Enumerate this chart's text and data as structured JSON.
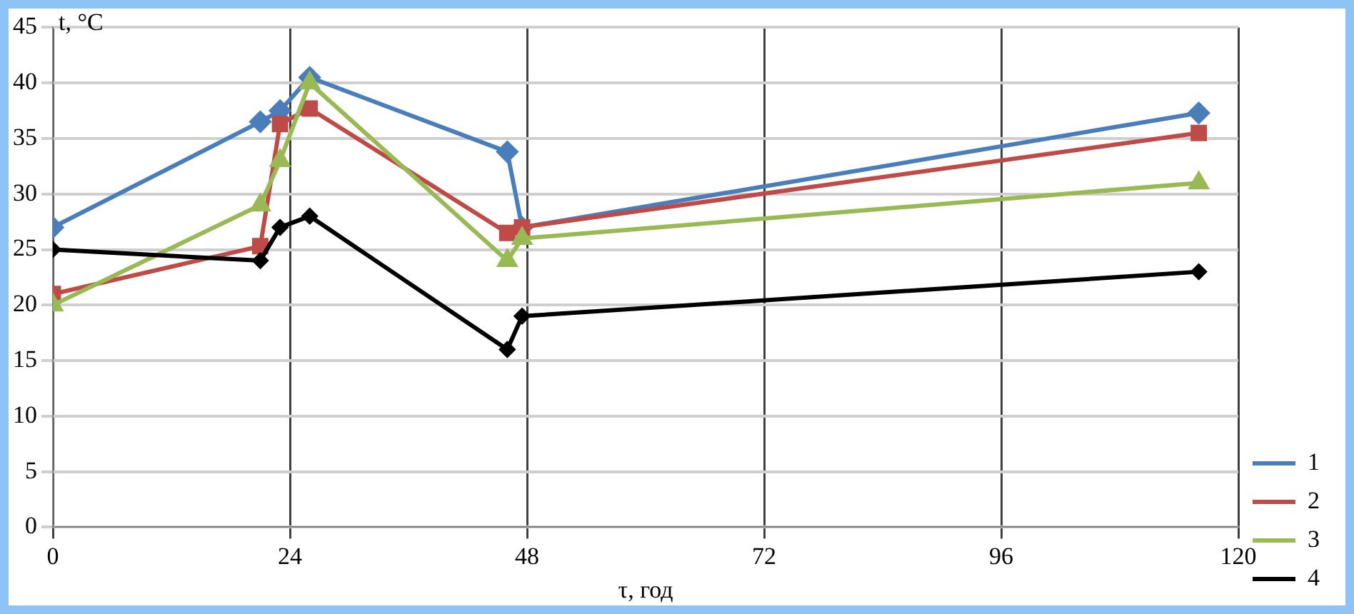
{
  "chart_data": {
    "type": "line",
    "xlabel": "τ, год",
    "ylabel": "t, °C",
    "xlim": [
      0,
      120
    ],
    "xticks": [
      0,
      24,
      48,
      72,
      96,
      120
    ],
    "ylim": [
      0,
      45
    ],
    "yticks": [
      0,
      5,
      10,
      15,
      20,
      25,
      30,
      35,
      40,
      45
    ],
    "grid": true,
    "legend": "right",
    "line_style": "solid",
    "series": [
      {
        "name": "1",
        "color": "#4a7ebb",
        "marker": "diamond",
        "x": [
          0,
          21,
          23,
          26,
          46,
          47.5,
          116
        ],
        "values": [
          27,
          36.5,
          37.5,
          40.5,
          33.8,
          27,
          37.3
        ]
      },
      {
        "name": "2",
        "color": "#be4b48",
        "marker": "square",
        "x": [
          0,
          21,
          23,
          26,
          46,
          47.5,
          116
        ],
        "values": [
          21,
          25.3,
          36.3,
          37.7,
          26.5,
          27,
          35.5
        ]
      },
      {
        "name": "3",
        "color": "#98b954",
        "marker": "triangle",
        "x": [
          0,
          21,
          23,
          26,
          46,
          47.5,
          116
        ],
        "values": [
          20,
          29,
          33,
          40,
          24,
          26,
          31
        ]
      },
      {
        "name": "4",
        "color": "#000000",
        "marker": "diamond",
        "x": [
          0,
          21,
          23,
          26,
          46,
          47.5,
          116
        ],
        "values": [
          25,
          24,
          27,
          28,
          16,
          19,
          23
        ]
      }
    ]
  }
}
